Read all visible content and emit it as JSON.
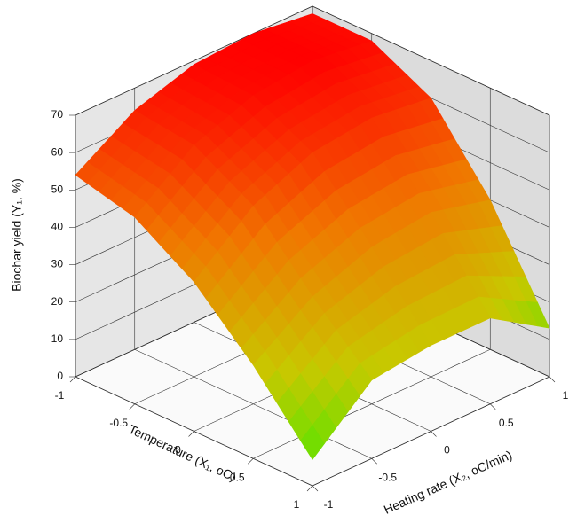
{
  "chart_data": {
    "type": "surface",
    "zlabel": "Biochar yield (Y₁, %)",
    "xlabel": "Temperature (X₁, oC)",
    "ylabel": "Heating rate (X₂, oC/min)",
    "x": [
      -1,
      -0.5,
      0,
      0.5,
      1
    ],
    "y": [
      -1,
      -0.5,
      0,
      0.5,
      1
    ],
    "z": [
      [
        54,
        64,
        69,
        70,
        68
      ],
      [
        50,
        62,
        68,
        70,
        68
      ],
      [
        40,
        53,
        60,
        62,
        60
      ],
      [
        25,
        36,
        42,
        44,
        40
      ],
      [
        7,
        21,
        23,
        23,
        13
      ]
    ],
    "xlim": [
      -1,
      1
    ],
    "ylim": [
      -1,
      1
    ],
    "zlim": [
      0,
      70
    ],
    "xticks": [
      -1,
      -0.5,
      0,
      0.5,
      1
    ],
    "yticks": [
      -1,
      -0.5,
      0,
      0.5,
      1
    ],
    "zticks": [
      0,
      10,
      20,
      30,
      40,
      50,
      60,
      70
    ],
    "colormap": [
      "#33ee00",
      "#c8c800",
      "#f07800",
      "#ff0000"
    ],
    "grid": true
  }
}
